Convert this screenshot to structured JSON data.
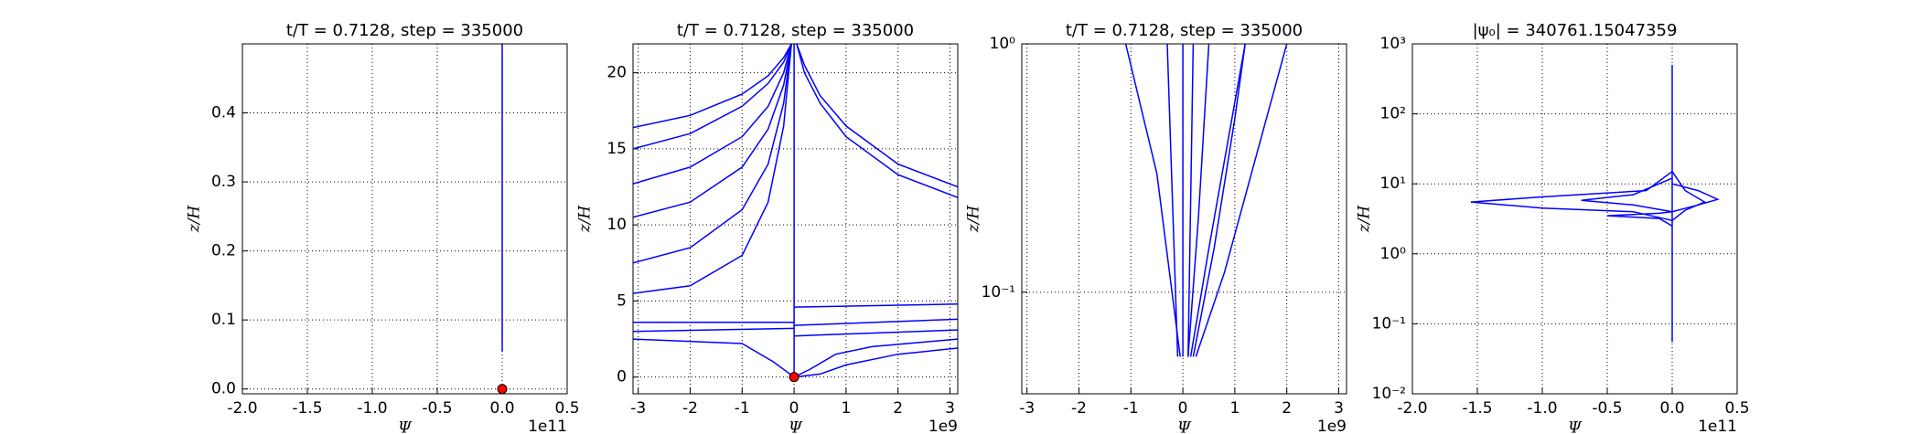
{
  "chart_data": [
    {
      "type": "line",
      "title": "t/T = 0.7128, step = 335000",
      "x_label": "Ψ",
      "y_label": "z/H",
      "x_offset": "1e11",
      "xlim": [
        -2.0,
        0.5
      ],
      "ylim": [
        -0.007,
        0.5
      ],
      "log_y": false,
      "grid": true,
      "xticks": [
        {
          "value": -2.0,
          "label": "-2.0"
        },
        -1.5,
        {
          "value": -1.0,
          "label": "-1.0"
        },
        -0.5,
        {
          "value": 0.0,
          "label": "0.0"
        },
        0.5
      ],
      "yticks": [
        {
          "value": 0.0,
          "label": "0.0"
        },
        0.1,
        0.2,
        0.3,
        0.4
      ],
      "series": [
        {
          "color": "#0000ff",
          "x": [
            0,
            0
          ],
          "values": [
            0.055,
            0.5
          ]
        }
      ],
      "markers": {
        "color": "#ff0000",
        "x": [
          0
        ],
        "values": [
          0
        ]
      }
    },
    {
      "type": "line",
      "title": "t/T = 0.7128, step = 335000",
      "x_label": "Ψ",
      "y_label": "z/H",
      "x_offset": "1e9",
      "xlim": [
        -3.1,
        3.15
      ],
      "ylim": [
        -1.1,
        21.9
      ],
      "log_y": false,
      "grid": true,
      "xticks": [
        -3,
        -2,
        -1,
        0,
        1,
        2,
        3
      ],
      "yticks": [
        0,
        5,
        10,
        15,
        20
      ],
      "series": [
        {
          "color": "#0000ff",
          "x": [
            -3.1,
            -2,
            -1,
            -0.5,
            -0.2,
            -0.05
          ],
          "values": [
            16.4,
            17.2,
            18.6,
            19.8,
            21,
            21.9
          ]
        },
        {
          "color": "#0000ff",
          "x": [
            -3.1,
            -2,
            -1,
            -0.5,
            -0.2,
            -0.05
          ],
          "values": [
            15,
            16,
            17.8,
            19.3,
            20.7,
            21.9
          ]
        },
        {
          "color": "#0000ff",
          "x": [
            -3.1,
            -2,
            -1,
            -0.5,
            -0.2,
            -0.05
          ],
          "values": [
            12.7,
            13.8,
            15.8,
            17.8,
            20,
            21.9
          ]
        },
        {
          "color": "#0000ff",
          "x": [
            -3.1,
            -2,
            -1,
            -0.5,
            -0.2,
            -0.05
          ],
          "values": [
            10.5,
            11.5,
            13.8,
            16.3,
            19.2,
            21.9
          ]
        },
        {
          "color": "#0000ff",
          "x": [
            -3.1,
            -2,
            -1,
            -0.5,
            -0.2,
            -0.05
          ],
          "values": [
            7.5,
            8.5,
            11,
            14,
            18,
            21.9
          ]
        },
        {
          "color": "#0000ff",
          "x": [
            -3.1,
            -2,
            -1,
            -0.5,
            -0.2,
            -0.05
          ],
          "values": [
            5.5,
            6,
            8,
            11.5,
            16.5,
            21.9
          ]
        },
        {
          "color": "#0000ff",
          "x": [
            0.05,
            0.2,
            0.5,
            1,
            2,
            3.15
          ],
          "values": [
            21.9,
            20.5,
            18.5,
            16.5,
            14,
            12.5
          ]
        },
        {
          "color": "#0000ff",
          "x": [
            0.05,
            0.2,
            0.5,
            1,
            2,
            3.15
          ],
          "values": [
            21.9,
            20,
            18,
            15.8,
            13.3,
            11.8
          ]
        },
        {
          "color": "#0000ff",
          "x": [
            -3.1,
            0
          ],
          "values": [
            3.6,
            3.6
          ]
        },
        {
          "color": "#0000ff",
          "x": [
            -3.1,
            0
          ],
          "values": [
            3.0,
            3.2
          ]
        },
        {
          "color": "#0000ff",
          "x": [
            0,
            3.15
          ],
          "values": [
            4.6,
            4.8
          ]
        },
        {
          "color": "#0000ff",
          "x": [
            0,
            3.15
          ],
          "values": [
            3.4,
            3.8
          ]
        },
        {
          "color": "#0000ff",
          "x": [
            0,
            3.15
          ],
          "values": [
            2.7,
            3.1
          ]
        },
        {
          "color": "#0000ff",
          "x": [
            -3.1,
            -1,
            -0.4,
            0
          ],
          "values": [
            2.5,
            2.2,
            1,
            0
          ]
        },
        {
          "color": "#0000ff",
          "x": [
            0,
            0.3,
            0.8,
            1.5,
            3.15
          ],
          "values": [
            0,
            0.5,
            1.5,
            2,
            2.5
          ]
        },
        {
          "color": "#0000ff",
          "x": [
            0,
            0.5,
            1,
            2,
            3.15
          ],
          "values": [
            0,
            0.2,
            0.8,
            1.5,
            1.9
          ]
        },
        {
          "color": "#0000ff",
          "x": [
            0,
            0
          ],
          "values": [
            0,
            21.9
          ]
        }
      ],
      "markers": {
        "color": "#ff0000",
        "x": [
          0
        ],
        "values": [
          0
        ]
      }
    },
    {
      "type": "line",
      "title": "t/T = 0.7128, step = 335000",
      "x_label": "Ψ",
      "y_label": "z/H",
      "x_offset": "1e9",
      "xlim": [
        -3.1,
        3.15
      ],
      "ylim": [
        0.039,
        1
      ],
      "log_y": true,
      "grid": true,
      "xticks": [
        -3,
        -2,
        -1,
        0,
        1,
        2,
        3
      ],
      "yticks": [
        {
          "value": 0.1,
          "label": "10⁻¹"
        },
        {
          "value": 1,
          "label": "10⁰"
        }
      ],
      "series": [
        {
          "color": "#0000ff",
          "x": [
            0,
            0
          ],
          "values": [
            0.055,
            1
          ]
        },
        {
          "color": "#0000ff",
          "x": [
            -0.05,
            -0.5,
            -1.1
          ],
          "values": [
            0.055,
            0.3,
            1
          ]
        },
        {
          "color": "#0000ff",
          "x": [
            0.1,
            0.3,
            0.5
          ],
          "values": [
            0.055,
            0.2,
            1
          ]
        },
        {
          "color": "#0000ff",
          "x": [
            0.15,
            0.5,
            1.2
          ],
          "values": [
            0.055,
            0.15,
            1
          ]
        },
        {
          "color": "#0000ff",
          "x": [
            0.2,
            0.6,
            1.0,
            1.2
          ],
          "values": [
            0.055,
            0.15,
            0.5,
            1
          ]
        },
        {
          "color": "#0000ff",
          "x": [
            0.25,
            0.8,
            2.0
          ],
          "values": [
            0.055,
            0.12,
            1
          ]
        },
        {
          "color": "#0000ff",
          "x": [
            -0.1,
            -0.3
          ],
          "values": [
            0.055,
            1
          ]
        },
        {
          "color": "#0000ff",
          "x": [
            0.1,
            0.2
          ],
          "values": [
            0.055,
            1
          ]
        }
      ]
    },
    {
      "type": "line",
      "title": "|ψ₀| = 340761.15047359",
      "x_label": "Ψ",
      "y_label": "z/H",
      "x_offset": "1e11",
      "xlim": [
        -2.0,
        0.5
      ],
      "ylim": [
        0.01,
        1000
      ],
      "log_y": true,
      "grid": true,
      "xticks": [
        {
          "value": -2.0,
          "label": "-2.0"
        },
        -1.5,
        {
          "value": -1.0,
          "label": "-1.0"
        },
        -0.5,
        {
          "value": 0.0,
          "label": "0.0"
        },
        0.5
      ],
      "yticks": [
        {
          "value": 0.01,
          "label": "10⁻²"
        },
        {
          "value": 0.1,
          "label": "10⁻¹"
        },
        {
          "value": 1,
          "label": "10⁰"
        },
        {
          "value": 10,
          "label": "10¹"
        },
        {
          "value": 100,
          "label": "10²"
        },
        {
          "value": 1000,
          "label": "10³"
        }
      ],
      "series": [
        {
          "color": "#0000ff",
          "x": [
            0,
            0
          ],
          "values": [
            0.055,
            500
          ]
        },
        {
          "color": "#0000ff",
          "x": [
            0,
            -0.2,
            -1.0,
            -1.55,
            -1.0,
            -0.3,
            0
          ],
          "values": [
            15,
            8,
            6.5,
            5.5,
            4.5,
            4,
            3
          ]
        },
        {
          "color": "#0000ff",
          "x": [
            0,
            -0.3,
            -0.7,
            -0.3,
            0,
            0.2,
            0.35,
            0.2,
            0
          ],
          "values": [
            12,
            7,
            5.8,
            5,
            4,
            5,
            6,
            8,
            10
          ]
        },
        {
          "color": "#0000ff",
          "x": [
            0,
            0.1,
            0.25,
            0.1,
            0
          ],
          "values": [
            15,
            8,
            5.5,
            4.2,
            3
          ]
        },
        {
          "color": "#0000ff",
          "x": [
            0,
            -0.1,
            -0.5,
            -0.1,
            0
          ],
          "values": [
            4,
            3.8,
            3.5,
            3.2,
            2.5
          ]
        }
      ]
    }
  ]
}
